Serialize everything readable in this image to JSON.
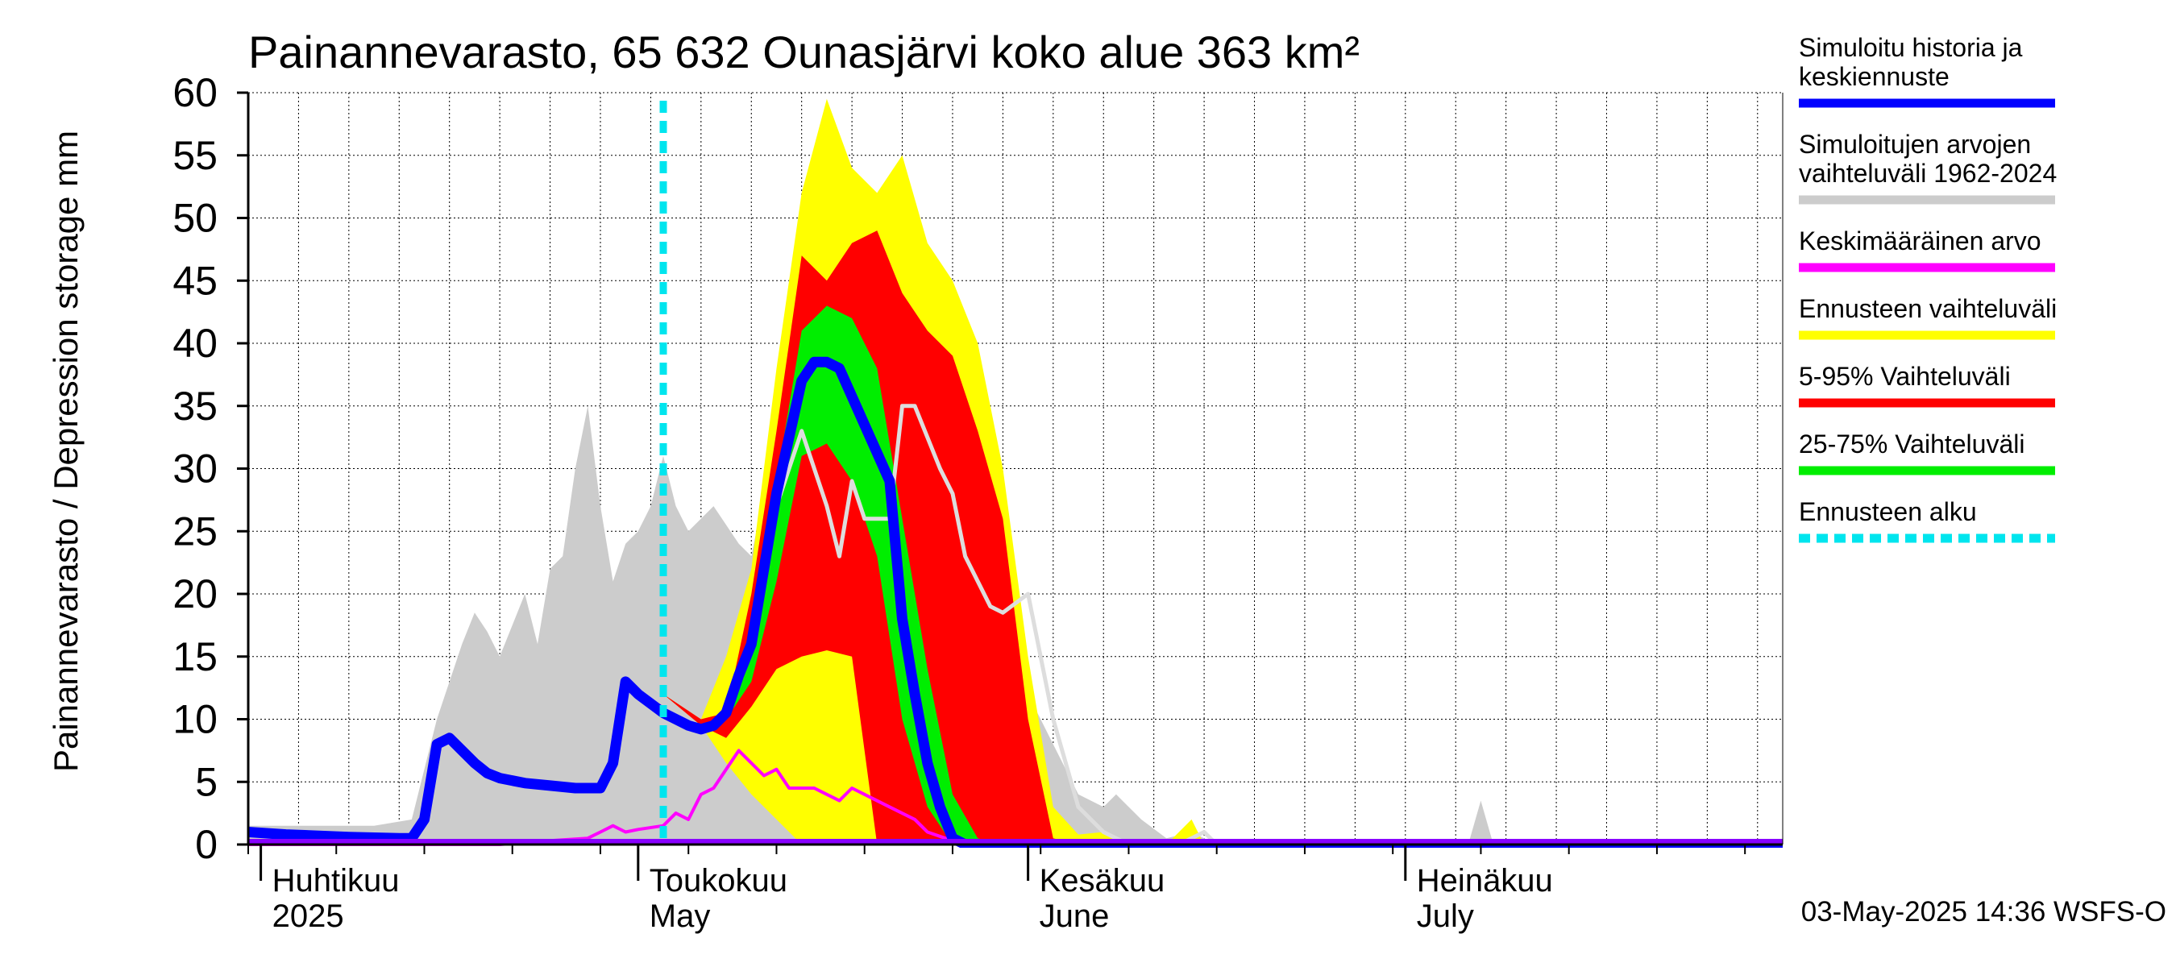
{
  "chart_data": {
    "type": "area",
    "title": "Painannevarasto, 65 632 Ounasjärvi koko alue 363 km²",
    "ylabel": "Painannevarasto / Depression storage    mm",
    "ylim": [
      0,
      60
    ],
    "yticks": [
      "0",
      "5",
      "10",
      "15",
      "20",
      "25",
      "30",
      "35",
      "40",
      "45",
      "50",
      "55",
      "60"
    ],
    "xlim": [
      "2025-03-31",
      "2025-07-31"
    ],
    "grid": true,
    "legend_position": "right",
    "month_labels": [
      {
        "date": "2025-04-01",
        "line1": "Huhtikuu",
        "line2": "2025"
      },
      {
        "date": "2025-05-01",
        "line1": "Toukokuu",
        "line2": "May"
      },
      {
        "date": "2025-06-01",
        "line1": "Kesäkuu",
        "line2": "June"
      },
      {
        "date": "2025-07-01",
        "line1": "Heinäkuu",
        "line2": "July"
      }
    ],
    "forecast_start": "2025-05-03",
    "footer": "03-May-2025 14:36 WSFS-O",
    "legend": [
      {
        "label": "Simuloitu historia ja keskiennuste",
        "color": "#0000ff"
      },
      {
        "label": "Simuloitujen arvojen vaihteluväli 1962-2024",
        "color": "#cccccc"
      },
      {
        "label": "Keskimääräinen arvo",
        "color": "#ff00ff"
      },
      {
        "label": "Ennusteen vaihteluväli",
        "color": "#ffff00"
      },
      {
        "label": "5-95% Vaihteluväli",
        "color": "#ff0000"
      },
      {
        "label": "25-75% Vaihteluväli",
        "color": "#00ee00"
      },
      {
        "label": "Ennusteen alku",
        "color": "#00e5ee"
      }
    ],
    "series": [
      {
        "name": "Simuloitujen arvojen vaihteluväli 1962-2024",
        "kind": "band",
        "color": "#cccccc",
        "points": [
          [
            "2025-03-31",
            0,
            1.5
          ],
          [
            "2025-04-05",
            0,
            1.5
          ],
          [
            "2025-04-10",
            0,
            1.5
          ],
          [
            "2025-04-13",
            0,
            2
          ],
          [
            "2025-04-15",
            0,
            10
          ],
          [
            "2025-04-17",
            0,
            16
          ],
          [
            "2025-04-18",
            0,
            18.5
          ],
          [
            "2025-04-19",
            0,
            17
          ],
          [
            "2025-04-20",
            0,
            15
          ],
          [
            "2025-04-22",
            0,
            20
          ],
          [
            "2025-04-23",
            0,
            16
          ],
          [
            "2025-04-24",
            0,
            22
          ],
          [
            "2025-04-25",
            0,
            23
          ],
          [
            "2025-04-26",
            0,
            30
          ],
          [
            "2025-04-27",
            0,
            35
          ],
          [
            "2025-04-28",
            0,
            27
          ],
          [
            "2025-04-29",
            0,
            21
          ],
          [
            "2025-04-30",
            0,
            24
          ],
          [
            "2025-05-01",
            0,
            25
          ],
          [
            "2025-05-02",
            0,
            27
          ],
          [
            "2025-05-03",
            0,
            31
          ],
          [
            "2025-05-04",
            0,
            27
          ],
          [
            "2025-05-05",
            0,
            25
          ],
          [
            "2025-05-07",
            0,
            27
          ],
          [
            "2025-05-09",
            0,
            24
          ],
          [
            "2025-05-10",
            0,
            23
          ],
          [
            "2025-05-11",
            0,
            28
          ],
          [
            "2025-05-12",
            0,
            25
          ],
          [
            "2025-05-13",
            0,
            29
          ],
          [
            "2025-05-14",
            0,
            33
          ],
          [
            "2025-05-15",
            0,
            31
          ],
          [
            "2025-05-17",
            0,
            27
          ],
          [
            "2025-05-19",
            0,
            25
          ],
          [
            "2025-05-21",
            0,
            26
          ],
          [
            "2025-05-23",
            0,
            35
          ],
          [
            "2025-05-25",
            0,
            33
          ],
          [
            "2025-05-27",
            0,
            30
          ],
          [
            "2025-05-29",
            0,
            23
          ],
          [
            "2025-05-31",
            0,
            22
          ],
          [
            "2025-06-01",
            0,
            12
          ],
          [
            "2025-06-03",
            0,
            8
          ],
          [
            "2025-06-05",
            0,
            4
          ],
          [
            "2025-06-07",
            0,
            3
          ],
          [
            "2025-06-08",
            0,
            4
          ],
          [
            "2025-06-10",
            0,
            2
          ],
          [
            "2025-06-12",
            0,
            0.5
          ],
          [
            "2025-06-14",
            0,
            1
          ],
          [
            "2025-06-16",
            0,
            0
          ],
          [
            "2025-06-30",
            0,
            0
          ],
          [
            "2025-07-06",
            0,
            0
          ],
          [
            "2025-07-07",
            0,
            3.5
          ],
          [
            "2025-07-08",
            0,
            0
          ],
          [
            "2025-07-31",
            0,
            0
          ]
        ]
      },
      {
        "name": "Ennusteen vaihteluväli",
        "kind": "band",
        "color": "#ffff00",
        "points": [
          [
            "2025-05-03",
            12,
            12
          ],
          [
            "2025-05-06",
            9.5,
            10
          ],
          [
            "2025-05-08",
            6.5,
            15
          ],
          [
            "2025-05-10",
            4,
            22
          ],
          [
            "2025-05-12",
            2,
            38
          ],
          [
            "2025-05-14",
            0,
            52
          ],
          [
            "2025-05-16",
            0,
            59.5
          ],
          [
            "2025-05-18",
            0,
            54
          ],
          [
            "2025-05-20",
            0,
            52
          ],
          [
            "2025-05-22",
            0,
            55
          ],
          [
            "2025-05-24",
            0,
            48
          ],
          [
            "2025-05-26",
            0,
            45
          ],
          [
            "2025-05-28",
            0,
            40
          ],
          [
            "2025-05-30",
            0,
            30
          ],
          [
            "2025-06-01",
            0,
            15
          ],
          [
            "2025-06-03",
            0,
            3
          ],
          [
            "2025-06-05",
            0,
            0.8
          ],
          [
            "2025-06-07",
            0,
            1
          ],
          [
            "2025-06-09",
            0,
            0
          ],
          [
            "2025-06-12",
            0,
            0
          ],
          [
            "2025-06-13",
            0,
            1
          ],
          [
            "2025-06-14",
            0,
            2
          ],
          [
            "2025-06-15",
            0,
            0
          ],
          [
            "2025-07-31",
            0,
            0
          ]
        ]
      },
      {
        "name": "5-95% Vaihteluväli",
        "kind": "band",
        "color": "#ff0000",
        "points": [
          [
            "2025-05-03",
            12,
            12
          ],
          [
            "2025-05-06",
            9.5,
            10
          ],
          [
            "2025-05-08",
            8.5,
            10.5
          ],
          [
            "2025-05-10",
            11,
            20
          ],
          [
            "2025-05-12",
            14,
            33
          ],
          [
            "2025-05-14",
            15,
            47
          ],
          [
            "2025-05-16",
            15.5,
            45
          ],
          [
            "2025-05-18",
            15,
            48
          ],
          [
            "2025-05-20",
            0,
            49
          ],
          [
            "2025-05-22",
            0,
            44
          ],
          [
            "2025-05-24",
            0,
            41
          ],
          [
            "2025-05-26",
            0,
            39
          ],
          [
            "2025-05-28",
            0,
            33
          ],
          [
            "2025-05-30",
            0,
            26
          ],
          [
            "2025-06-01",
            0,
            10
          ],
          [
            "2025-06-03",
            0,
            0.5
          ],
          [
            "2025-06-05",
            0,
            0
          ],
          [
            "2025-07-31",
            0,
            0
          ]
        ]
      },
      {
        "name": "25-75% Vaihteluväli",
        "kind": "band",
        "color": "#00ee00",
        "points": [
          [
            "2025-05-08",
            10,
            10
          ],
          [
            "2025-05-10",
            13,
            17
          ],
          [
            "2025-05-12",
            21,
            29
          ],
          [
            "2025-05-14",
            31,
            41
          ],
          [
            "2025-05-16",
            32,
            43
          ],
          [
            "2025-05-18",
            29,
            42
          ],
          [
            "2025-05-20",
            23,
            38
          ],
          [
            "2025-05-22",
            10,
            26
          ],
          [
            "2025-05-24",
            3,
            14
          ],
          [
            "2025-05-26",
            0,
            4
          ],
          [
            "2025-05-28",
            0,
            0.5
          ],
          [
            "2025-05-30",
            0,
            0
          ],
          [
            "2025-07-31",
            0,
            0
          ]
        ]
      },
      {
        "name": "Keskimääräinen arvo",
        "kind": "line",
        "color": "#ff00ff",
        "points": [
          [
            "2025-03-31",
            0
          ],
          [
            "2025-04-10",
            0
          ],
          [
            "2025-04-20",
            0
          ],
          [
            "2025-04-24",
            0.3
          ],
          [
            "2025-04-27",
            0.5
          ],
          [
            "2025-04-28",
            1
          ],
          [
            "2025-04-29",
            1.5
          ],
          [
            "2025-04-30",
            1
          ],
          [
            "2025-05-01",
            1.2
          ],
          [
            "2025-05-03",
            1.5
          ],
          [
            "2025-05-04",
            2.5
          ],
          [
            "2025-05-05",
            2
          ],
          [
            "2025-05-06",
            4
          ],
          [
            "2025-05-07",
            4.5
          ],
          [
            "2025-05-09",
            7.5
          ],
          [
            "2025-05-11",
            5.5
          ],
          [
            "2025-05-12",
            6
          ],
          [
            "2025-05-13",
            4.5
          ],
          [
            "2025-05-15",
            4.5
          ],
          [
            "2025-05-17",
            3.5
          ],
          [
            "2025-05-18",
            4.5
          ],
          [
            "2025-05-19",
            4
          ],
          [
            "2025-05-21",
            3
          ],
          [
            "2025-05-23",
            2
          ],
          [
            "2025-05-24",
            1
          ],
          [
            "2025-05-26",
            0.3
          ],
          [
            "2025-05-28",
            0
          ],
          [
            "2025-07-31",
            0
          ]
        ]
      },
      {
        "name": "Simulated history and mean forecast (2)",
        "kind": "line",
        "color": "#dddddd",
        "points": [
          [
            "2025-05-12",
            27
          ],
          [
            "2025-05-14",
            33
          ],
          [
            "2025-05-16",
            27
          ],
          [
            "2025-05-17",
            23
          ],
          [
            "2025-05-18",
            29
          ],
          [
            "2025-05-19",
            26
          ],
          [
            "2025-05-21",
            26
          ],
          [
            "2025-05-22",
            35
          ],
          [
            "2025-05-23",
            35
          ],
          [
            "2025-05-25",
            30
          ],
          [
            "2025-05-26",
            28
          ],
          [
            "2025-05-27",
            23
          ],
          [
            "2025-05-29",
            19
          ],
          [
            "2025-05-30",
            18.5
          ],
          [
            "2025-06-01",
            20
          ],
          [
            "2025-06-03",
            10
          ],
          [
            "2025-06-05",
            3
          ],
          [
            "2025-06-07",
            1
          ],
          [
            "2025-06-09",
            0
          ],
          [
            "2025-06-13",
            0
          ],
          [
            "2025-06-15",
            1
          ],
          [
            "2025-06-16",
            0
          ]
        ]
      },
      {
        "name": "Simuloitu historia ja keskiennuste",
        "kind": "line",
        "color": "#0000ff",
        "points": [
          [
            "2025-03-31",
            1
          ],
          [
            "2025-04-03",
            0.8
          ],
          [
            "2025-04-08",
            0.6
          ],
          [
            "2025-04-12",
            0.5
          ],
          [
            "2025-04-13",
            0.5
          ],
          [
            "2025-04-14",
            2
          ],
          [
            "2025-04-15",
            8
          ],
          [
            "2025-04-16",
            8.5
          ],
          [
            "2025-04-17",
            7.5
          ],
          [
            "2025-04-18",
            6.5
          ],
          [
            "2025-04-19",
            5.7
          ],
          [
            "2025-04-20",
            5.3
          ],
          [
            "2025-04-22",
            4.9
          ],
          [
            "2025-04-24",
            4.7
          ],
          [
            "2025-04-26",
            4.5
          ],
          [
            "2025-04-28",
            4.5
          ],
          [
            "2025-04-29",
            6.5
          ],
          [
            "2025-04-30",
            13
          ],
          [
            "2025-05-01",
            12
          ],
          [
            "2025-05-03",
            10.5
          ],
          [
            "2025-05-05",
            9.5
          ],
          [
            "2025-05-06",
            9.2
          ],
          [
            "2025-05-07",
            9.5
          ],
          [
            "2025-05-08",
            10.5
          ],
          [
            "2025-05-09",
            13.5
          ],
          [
            "2025-05-10",
            16
          ],
          [
            "2025-05-12",
            28
          ],
          [
            "2025-05-14",
            37
          ],
          [
            "2025-05-15",
            38.5
          ],
          [
            "2025-05-16",
            38.5
          ],
          [
            "2025-05-17",
            38
          ],
          [
            "2025-05-19",
            33.5
          ],
          [
            "2025-05-21",
            29
          ],
          [
            "2025-05-22",
            18
          ],
          [
            "2025-05-23",
            12
          ],
          [
            "2025-05-24",
            6.5
          ],
          [
            "2025-05-25",
            3
          ],
          [
            "2025-05-26",
            0.5
          ],
          [
            "2025-05-27",
            0
          ],
          [
            "2025-07-31",
            0
          ]
        ]
      }
    ]
  }
}
